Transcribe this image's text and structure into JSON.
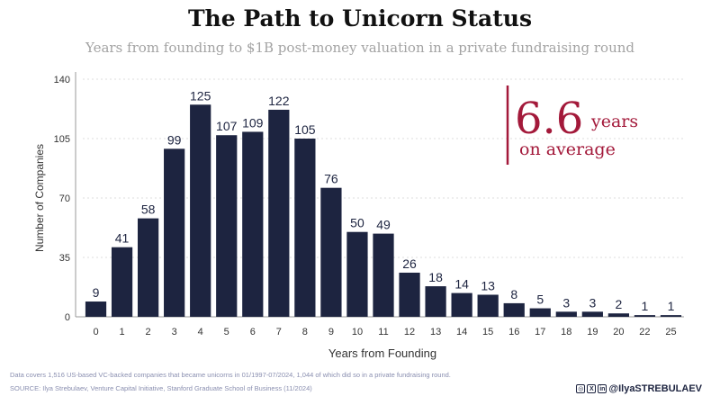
{
  "chart_data": {
    "type": "bar",
    "title": "The Path to Unicorn Status",
    "subtitle": "Years from founding to $1B post-money valuation in a private fundraising round",
    "xlabel": "Years from Founding",
    "ylabel": "Number of Companies",
    "ylim": [
      0,
      140
    ],
    "yticks": [
      "0",
      "35",
      "70",
      "105",
      "140"
    ],
    "categories": [
      "0",
      "1",
      "2",
      "3",
      "4",
      "5",
      "6",
      "7",
      "8",
      "9",
      "10",
      "11",
      "12",
      "13",
      "14",
      "15",
      "16",
      "17",
      "18",
      "19",
      "20",
      "22",
      "25"
    ],
    "values": [
      9,
      41,
      58,
      99,
      125,
      107,
      109,
      122,
      105,
      76,
      50,
      49,
      26,
      18,
      14,
      13,
      8,
      5,
      3,
      3,
      2,
      1,
      1
    ],
    "bar_color": "#1d2440",
    "annotation": {
      "value": "6.6",
      "unit": "years",
      "caption": "on average",
      "color": "#a3193a"
    }
  },
  "footer": {
    "note": "Data covers 1,516 US-based VC-backed companies that became unicorns in 01/1997-07/2024, 1,044 of which did so in a private fundraising round.",
    "source": "SOURCE: Ilya Strebulaev, Venture Capital Initiative, Stanford Graduate School of Business (11/2024)",
    "handle": "@IlyaSTREBULAEV"
  }
}
